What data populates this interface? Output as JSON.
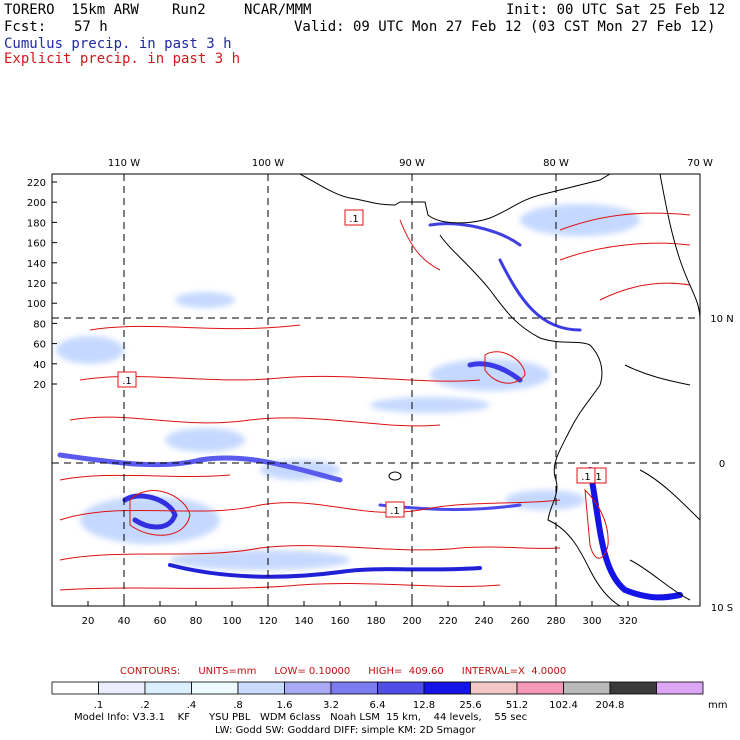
{
  "header": {
    "model": "TORERO  15km ARW",
    "run": "Run2",
    "center": "NCAR/MMM",
    "init": "Init: 00 UTC Sat 25 Feb 12",
    "fcst_label": "Fcst:",
    "fcst_value": "57 h",
    "valid": "Valid: 09 UTC Mon 27 Feb 12 (03 CST Mon 27 Feb 12)",
    "legend_cumulus": "Cumulus precip. in past 3 h",
    "legend_explicit": "Explicit precip. in past 3 h"
  },
  "map": {
    "top_lon_labels": [
      "110 W",
      "100 W",
      "90 W",
      "80 W",
      "70 W"
    ],
    "right_lat_labels": [
      "10 N",
      "0",
      "10 S"
    ],
    "left_ticks": [
      "220",
      "200",
      "180",
      "160",
      "140",
      "120",
      "100",
      "80",
      "60",
      "40",
      "20"
    ],
    "bottom_ticks": [
      "20",
      "40",
      "60",
      "80",
      "100",
      "120",
      "140",
      "160",
      "180",
      "200",
      "220",
      "240",
      "260",
      "280",
      "300",
      "320"
    ],
    "contour_boxes": [
      ".1",
      ".1",
      ".1",
      ".1",
      ".1"
    ],
    "colors": {
      "explicit_contour": "#e01010",
      "coast": "#000000"
    }
  },
  "contours_line": {
    "label": "CONTOURS:",
    "units": "UNITS=mm",
    "low": "LOW= 0.10000",
    "high": "HIGH=  409.60",
    "interval": "INTERVAL=X  4.0000"
  },
  "colorbar": {
    "colors": [
      "#ffffff",
      "#ececff",
      "#dcefff",
      "#eefaff",
      "#c9dcff",
      "#a9a9f6",
      "#7c7cf0",
      "#4f4fe8",
      "#1414e6",
      "#f4c7c7",
      "#f49ab6",
      "#b9b9b9",
      "#3a3a3a",
      "#dba6f5"
    ],
    "labels": [
      ".1",
      ".2",
      ".4",
      ".8",
      "1.6",
      "3.2",
      "6.4",
      "12.8",
      "25.6",
      "51.2",
      "102.4",
      "204.8"
    ],
    "unit": "mm"
  },
  "footer": {
    "line1": "Model Info: V3.3.1    KF      YSU PBL   WDM 6class   Noah LSM  15 km,    44 levels,    55 sec",
    "line2": "LW: Godd SW: Goddard DIFF: simple KM: 2D Smagor"
  }
}
